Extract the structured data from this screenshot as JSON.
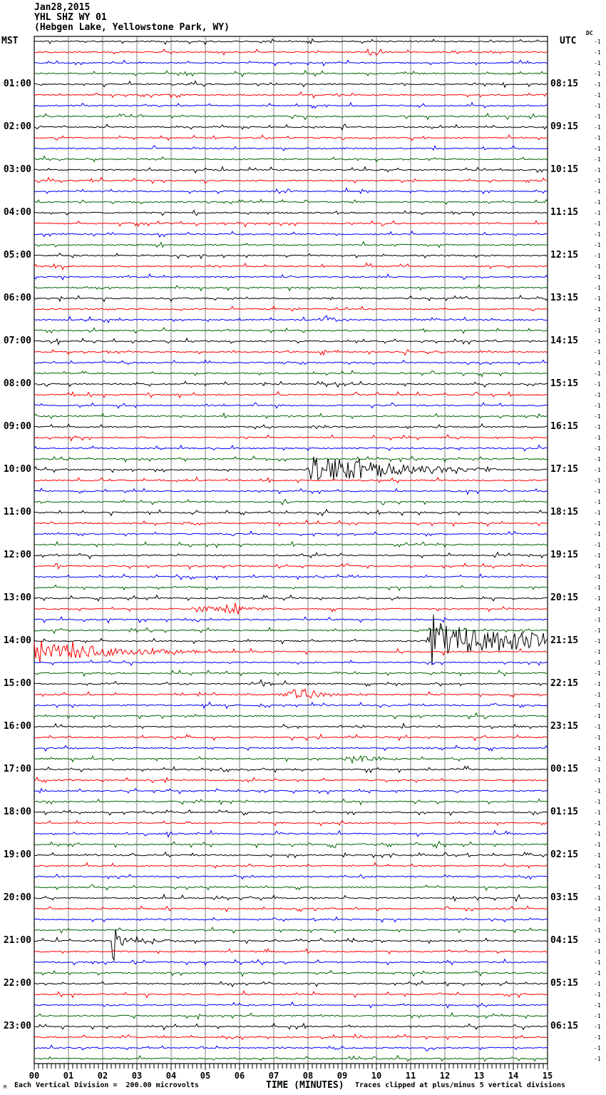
{
  "header": {
    "date": "Jan28,2015",
    "station": "YHL SHZ WY 01",
    "location": "(Hebgen Lake, Yellowstone Park, WY)",
    "left_timezone": "MST",
    "right_timezone": "UTC",
    "dc_label": "DC"
  },
  "footer": {
    "scale_note": "Each Vertical Division =  200.00 microvolts",
    "xaxis_label": "TIME (MINUTES)",
    "clip_note": "Traces clipped at plus/minus 5 vertical divisions",
    "corner_mark": "M"
  },
  "chart_data": {
    "type": "line",
    "kind": "helicorder-seismogram",
    "title": "YHL SHZ WY 01 (Hebgen Lake, Yellowstone Park, WY) Jan28,2015",
    "xlabel": "TIME (MINUTES)",
    "x_range_minutes": [
      0,
      15
    ],
    "minute_labels": [
      "00",
      "01",
      "02",
      "03",
      "04",
      "05",
      "06",
      "07",
      "08",
      "09",
      "10",
      "11",
      "12",
      "13",
      "14",
      "15"
    ],
    "hours": 24,
    "rows_per_hour": 4,
    "segment_minutes": 15,
    "trace_colors": [
      "#000000",
      "#ff0000",
      "#0000ff",
      "#006600"
    ],
    "grid_color": "#808080",
    "left_labels": [
      "01:00",
      "02:00",
      "03:00",
      "04:00",
      "05:00",
      "06:00",
      "07:00",
      "08:00",
      "09:00",
      "10:00",
      "11:00",
      "12:00",
      "13:00",
      "14:00",
      "15:00",
      "16:00",
      "17:00",
      "18:00",
      "19:00",
      "20:00",
      "21:00",
      "22:00",
      "23:00"
    ],
    "right_labels": [
      "08:15",
      "09:15",
      "10:15",
      "11:15",
      "12:15",
      "13:15",
      "14:15",
      "15:15",
      "16:15",
      "17:15",
      "18:15",
      "19:15",
      "20:15",
      "21:15",
      "22:15",
      "23:15",
      "00:15",
      "01:15",
      "02:15",
      "03:15",
      "04:15",
      "05:15",
      "06:15"
    ],
    "dc_column": {
      "value": "-1",
      "count": 96
    },
    "events": [
      {
        "hour": 6,
        "seg": 2,
        "start": 8.3,
        "peak": 8.5,
        "end": 9.5,
        "amp": 6,
        "decay": 2.5
      },
      {
        "hour": 9,
        "seg": 0,
        "start": 7.9,
        "peak": 8.2,
        "end": 9.2,
        "amp": 2.2,
        "decay": 1.5
      },
      {
        "hour": 10,
        "seg": 0,
        "start": 7.95,
        "peak": 8.15,
        "end": 13.5,
        "amp": 22,
        "decay": 0.45
      },
      {
        "hour": 10,
        "seg": 0,
        "start": 9.1,
        "peak": 9.35,
        "end": 10.5,
        "amp": 5,
        "decay": 1.2
      },
      {
        "hour": 11,
        "seg": 1,
        "start": 4.15,
        "peak": 4.5,
        "end": 5.3,
        "amp": 2.2,
        "decay": 1.5
      },
      {
        "hour": 13,
        "seg": 1,
        "start": 4.4,
        "peak": 5.0,
        "end": 7.6,
        "amp": 4.5,
        "decay": 0.8
      },
      {
        "hour": 13,
        "seg": 1,
        "start": 5.55,
        "peak": 5.8,
        "end": 6.3,
        "amp": 12,
        "decay": 4
      },
      {
        "hour": 14,
        "seg": 0,
        "start": 11.45,
        "peak": 11.75,
        "end": 15,
        "amp": 22,
        "decay": 0.18
      },
      {
        "hour": 14,
        "seg": 0,
        "start": 11.5,
        "peak": 11.65,
        "end": 11.95,
        "amp": 38,
        "decay": 6
      },
      {
        "hour": 14,
        "seg": 1,
        "start": -1,
        "peak": 0.2,
        "end": 10.5,
        "amp": 17,
        "decay": 0.55
      },
      {
        "hour": 14,
        "seg": 3,
        "start": 8.6,
        "peak": 8.8,
        "end": 9.3,
        "amp": 1.8,
        "decay": 3
      },
      {
        "hour": 15,
        "seg": 0,
        "start": 6.4,
        "peak": 6.7,
        "end": 7.3,
        "amp": 3.2,
        "decay": 3
      },
      {
        "hour": 15,
        "seg": 1,
        "start": 6.9,
        "peak": 7.6,
        "end": 9.8,
        "amp": 4.5,
        "decay": 1.0
      },
      {
        "hour": 15,
        "seg": 1,
        "start": 7.5,
        "peak": 7.85,
        "end": 8.5,
        "amp": 8,
        "decay": 3
      },
      {
        "hour": 16,
        "seg": 2,
        "start": 11.3,
        "peak": 11.5,
        "end": 11.85,
        "amp": 2,
        "decay": 4
      },
      {
        "hour": 16,
        "seg": 3,
        "start": 8.7,
        "peak": 9.6,
        "end": 11.2,
        "amp": 4.5,
        "decay": 1.5
      },
      {
        "hour": 21,
        "seg": 0,
        "start": 2.25,
        "peak": 2.32,
        "end": 2.6,
        "amp": 40,
        "decay": 18
      },
      {
        "hour": 21,
        "seg": 0,
        "start": 2.3,
        "peak": 2.5,
        "end": 5.3,
        "amp": 8,
        "decay": 1.1
      },
      {
        "hour": 21,
        "seg": 1,
        "start": 6.72,
        "peak": 6.8,
        "end": 7.0,
        "amp": 9,
        "decay": 15
      }
    ]
  }
}
